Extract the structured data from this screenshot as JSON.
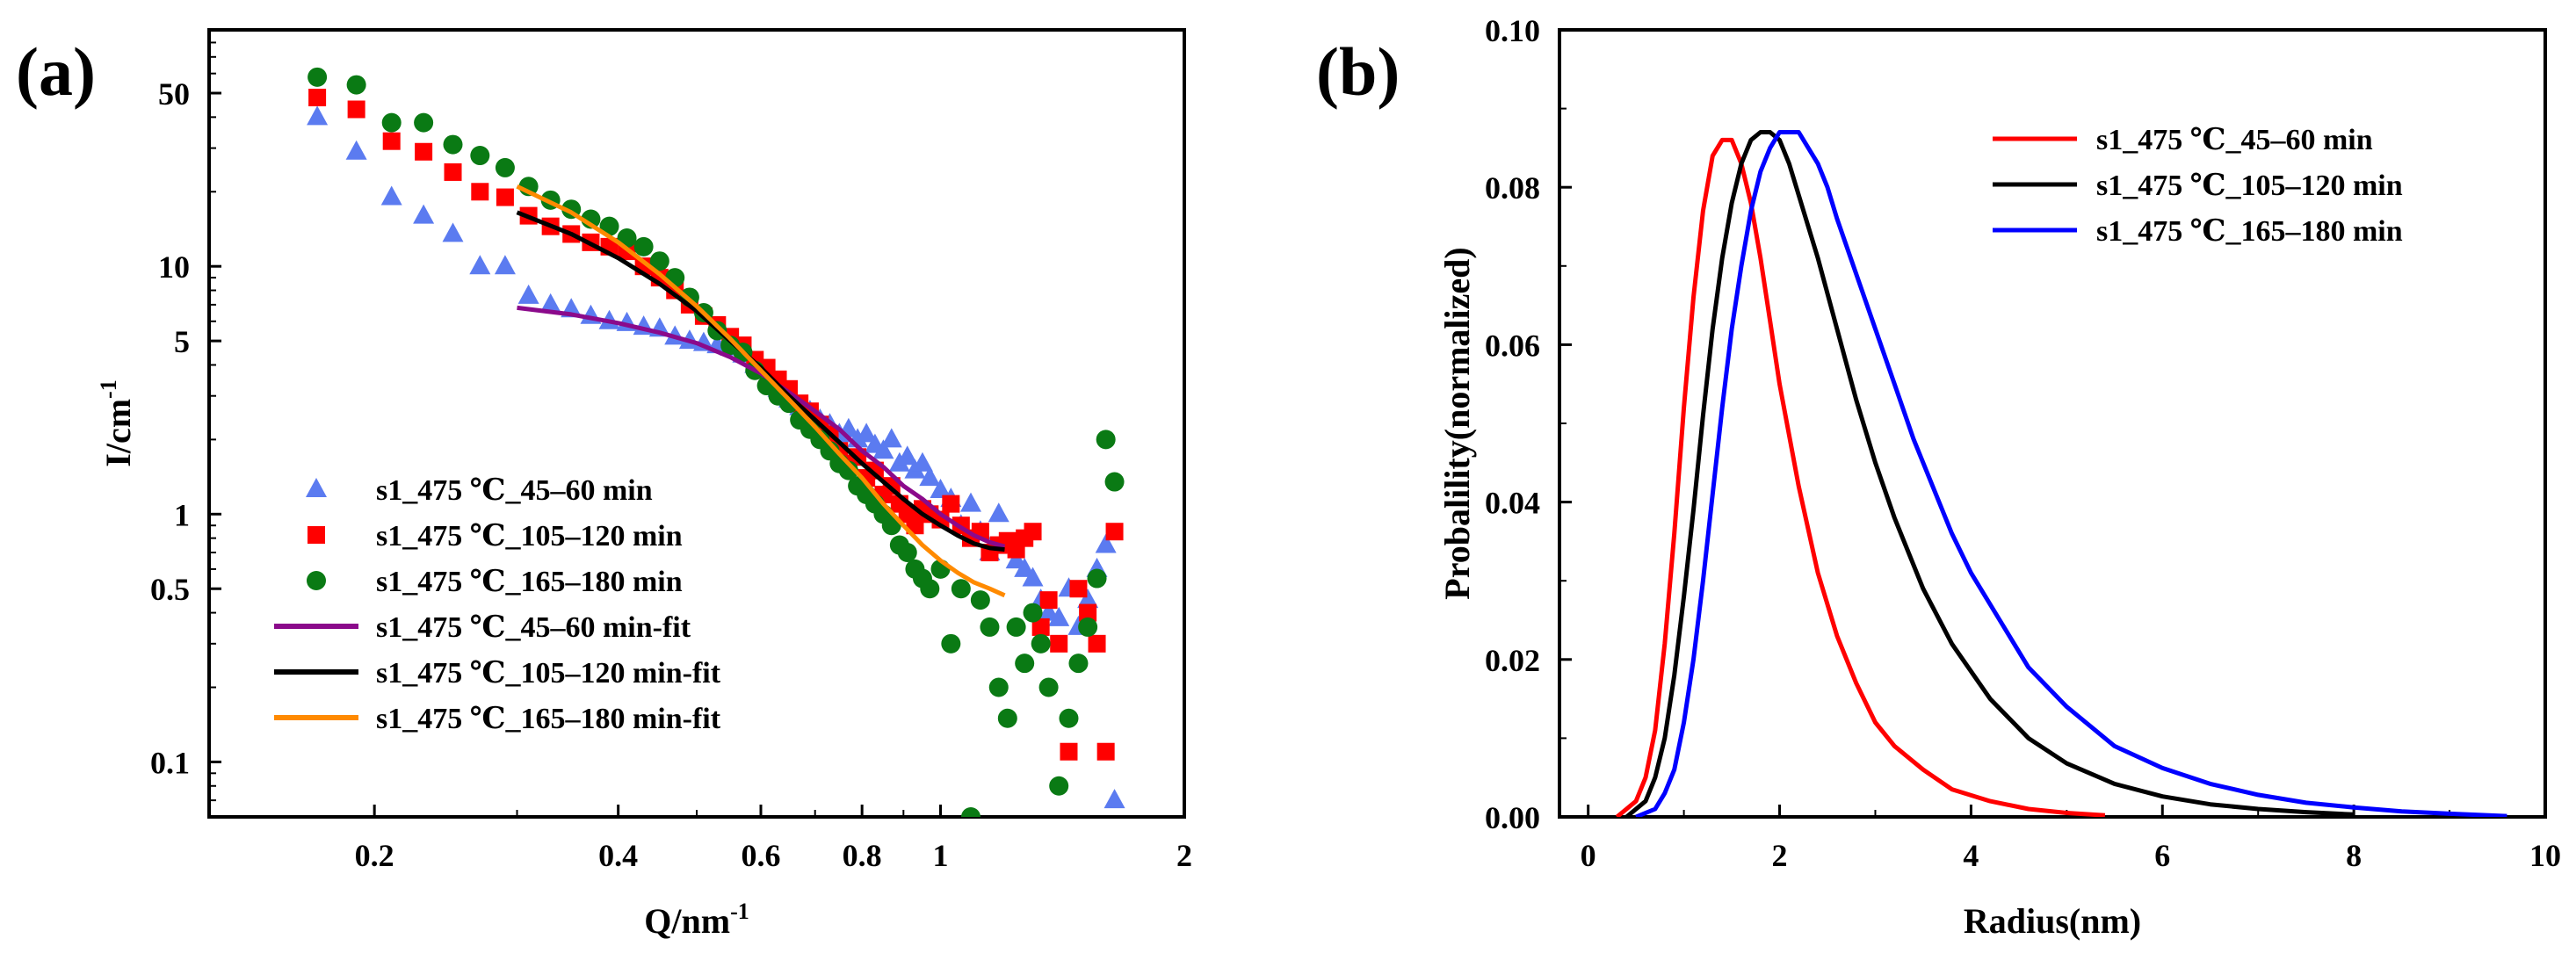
{
  "chart_data": [
    {
      "type": "scatter",
      "panel_label": "(a)",
      "xlabel": "Q/nm",
      "xlabel_sup": "-1",
      "ylabel": "I/cm",
      "ylabel_sup": "-1",
      "xscale": "log",
      "yscale": "log",
      "xlim": [
        0.125,
        2.0
      ],
      "ylim": [
        0.06,
        90
      ],
      "xticks": [
        {
          "v": 0.2,
          "label": "0.2"
        },
        {
          "v": 0.4,
          "label": "0.4"
        },
        {
          "v": 0.6,
          "label": "0.6"
        },
        {
          "v": 0.8,
          "label": "0.8"
        },
        {
          "v": 1,
          "label": "1"
        },
        {
          "v": 2,
          "label": "2"
        }
      ],
      "yticks": [
        {
          "v": 0.1,
          "label": "0.1"
        },
        {
          "v": 0.5,
          "label": "0.5"
        },
        {
          "v": 1,
          "label": "1"
        },
        {
          "v": 5,
          "label": "5"
        },
        {
          "v": 10,
          "label": "10"
        },
        {
          "v": 50,
          "label": "50"
        }
      ],
      "grid": false,
      "legend_position": "bottom-left",
      "series": [
        {
          "name": "s1_475 ℃_45–60 min",
          "kind": "marker",
          "marker": "triangle",
          "color": "#5B7BF0",
          "x": [
            0.17,
            0.19,
            0.21,
            0.23,
            0.25,
            0.27,
            0.29,
            0.31,
            0.33,
            0.35,
            0.37,
            0.39,
            0.41,
            0.43,
            0.45,
            0.47,
            0.49,
            0.51,
            0.53,
            0.55,
            0.57,
            0.59,
            0.61,
            0.63,
            0.65,
            0.67,
            0.69,
            0.71,
            0.73,
            0.75,
            0.77,
            0.79,
            0.81,
            0.83,
            0.85,
            0.87,
            0.89,
            0.91,
            0.93,
            0.95,
            0.97,
            1.0,
            1.03,
            1.06,
            1.09,
            1.12,
            1.15,
            1.18,
            1.21,
            1.24,
            1.27,
            1.3,
            1.33,
            1.36,
            1.4,
            1.44,
            1.48,
            1.52,
            1.56,
            1.6,
            1.64
          ],
          "y": [
            40,
            29,
            19,
            16,
            13.5,
            10,
            10,
            7.6,
            7.0,
            6.7,
            6.3,
            6.0,
            5.9,
            5.7,
            5.6,
            5.2,
            5.0,
            4.9,
            4.8,
            4.7,
            4.4,
            4.0,
            3.8,
            3.2,
            2.9,
            2.7,
            2.6,
            2.4,
            2.3,
            2.1,
            2.2,
            2.0,
            2.1,
            1.9,
            1.8,
            2.0,
            1.6,
            1.7,
            1.5,
            1.6,
            1.4,
            1.25,
            1.15,
            0.9,
            1.1,
            0.85,
            0.7,
            1.0,
            0.75,
            0.65,
            0.6,
            0.55,
            0.45,
            0.4,
            0.38,
            0.5,
            0.35,
            0.45,
            0.6,
            0.75,
            0.07
          ]
        },
        {
          "name": "s1_475 ℃_105–120 min",
          "kind": "marker",
          "marker": "square",
          "color": "#FF0000",
          "x": [
            0.17,
            0.19,
            0.21,
            0.23,
            0.25,
            0.27,
            0.29,
            0.31,
            0.33,
            0.35,
            0.37,
            0.39,
            0.41,
            0.43,
            0.45,
            0.47,
            0.49,
            0.51,
            0.53,
            0.55,
            0.57,
            0.59,
            0.61,
            0.63,
            0.65,
            0.67,
            0.69,
            0.71,
            0.73,
            0.75,
            0.77,
            0.79,
            0.81,
            0.83,
            0.85,
            0.87,
            0.89,
            0.91,
            0.93,
            0.95,
            0.97,
            1.0,
            1.03,
            1.06,
            1.09,
            1.12,
            1.15,
            1.18,
            1.21,
            1.24,
            1.27,
            1.3,
            1.33,
            1.36,
            1.4,
            1.44,
            1.48,
            1.52,
            1.56,
            1.6,
            1.64
          ],
          "y": [
            48,
            43,
            32,
            29,
            24,
            20,
            19,
            16,
            14.5,
            13.5,
            12.5,
            12.0,
            11.5,
            10.0,
            9.0,
            8.0,
            7.0,
            6.3,
            5.8,
            5.2,
            4.8,
            4.2,
            3.9,
            3.5,
            3.2,
            2.8,
            2.6,
            2.3,
            2.1,
            1.8,
            1.6,
            1.7,
            1.4,
            1.5,
            1.2,
            1.3,
            1.1,
            1.0,
            0.9,
            1.05,
            1.0,
            0.95,
            1.1,
            0.9,
            0.8,
            0.85,
            0.7,
            0.75,
            0.78,
            0.72,
            0.8,
            0.85,
            0.35,
            0.45,
            0.3,
            0.11,
            0.5,
            0.4,
            0.3,
            0.11,
            0.85
          ]
        },
        {
          "name": "s1_475 ℃_165–180 min",
          "kind": "marker",
          "marker": "circle",
          "color": "#0A7A14",
          "x": [
            0.17,
            0.19,
            0.21,
            0.23,
            0.25,
            0.27,
            0.29,
            0.31,
            0.33,
            0.35,
            0.37,
            0.39,
            0.41,
            0.43,
            0.45,
            0.47,
            0.49,
            0.51,
            0.53,
            0.55,
            0.57,
            0.59,
            0.61,
            0.63,
            0.65,
            0.67,
            0.69,
            0.71,
            0.73,
            0.75,
            0.77,
            0.79,
            0.81,
            0.83,
            0.85,
            0.87,
            0.89,
            0.91,
            0.93,
            0.95,
            0.97,
            1.0,
            1.03,
            1.06,
            1.09,
            1.12,
            1.15,
            1.18,
            1.21,
            1.24,
            1.27,
            1.3,
            1.33,
            1.36,
            1.4,
            1.44,
            1.48,
            1.52,
            1.56,
            1.6,
            1.64
          ],
          "y": [
            58,
            54,
            38,
            38,
            31,
            28,
            25,
            21,
            18.5,
            17,
            15.5,
            14.5,
            13,
            12,
            10.5,
            9,
            7.5,
            6.5,
            5.5,
            4.8,
            4.5,
            3.8,
            3.3,
            3.0,
            2.8,
            2.4,
            2.2,
            2.0,
            1.8,
            1.6,
            1.5,
            1.3,
            1.2,
            1.1,
            1.0,
            0.9,
            0.75,
            0.7,
            0.6,
            0.55,
            0.5,
            0.6,
            0.3,
            0.5,
            0.06,
            0.45,
            0.35,
            0.2,
            0.15,
            0.35,
            0.25,
            0.4,
            0.3,
            0.2,
            0.08,
            0.15,
            0.25,
            0.35,
            0.55,
            2.0,
            1.35
          ]
        },
        {
          "name": "s1_475 ℃_45–60 min-fit",
          "kind": "line",
          "color": "#8B0A8B",
          "x": [
            0.3,
            0.35,
            0.4,
            0.45,
            0.5,
            0.55,
            0.6,
            0.65,
            0.7,
            0.75,
            0.8,
            0.85,
            0.9,
            0.95,
            1.0,
            1.05,
            1.1,
            1.15,
            1.2
          ],
          "y": [
            6.8,
            6.4,
            5.9,
            5.4,
            4.9,
            4.3,
            3.7,
            3.1,
            2.6,
            2.2,
            1.8,
            1.55,
            1.3,
            1.15,
            1.0,
            0.9,
            0.82,
            0.77,
            0.74
          ]
        },
        {
          "name": "s1_475 ℃_105–120 min-fit",
          "kind": "line",
          "color": "#000000",
          "x": [
            0.3,
            0.35,
            0.4,
            0.45,
            0.5,
            0.55,
            0.6,
            0.65,
            0.7,
            0.75,
            0.8,
            0.85,
            0.9,
            0.95,
            1.0,
            1.05,
            1.1,
            1.15,
            1.2
          ],
          "y": [
            16.5,
            13.5,
            10.8,
            8.5,
            6.6,
            5.0,
            3.9,
            3.0,
            2.4,
            1.95,
            1.6,
            1.35,
            1.15,
            1.0,
            0.9,
            0.82,
            0.76,
            0.73,
            0.72
          ]
        },
        {
          "name": "s1_475 ℃_165–180 min-fit",
          "kind": "line",
          "color": "#FF8A00",
          "x": [
            0.3,
            0.35,
            0.4,
            0.45,
            0.5,
            0.55,
            0.6,
            0.65,
            0.7,
            0.75,
            0.8,
            0.85,
            0.9,
            0.95,
            1.0,
            1.05,
            1.1,
            1.15,
            1.2
          ],
          "y": [
            21,
            16.5,
            12.5,
            9.3,
            6.9,
            5.1,
            3.8,
            2.9,
            2.25,
            1.75,
            1.4,
            1.1,
            0.9,
            0.75,
            0.65,
            0.58,
            0.53,
            0.5,
            0.47
          ]
        }
      ]
    },
    {
      "type": "line",
      "panel_label": "(b)",
      "xlabel": "Radius(nm)",
      "ylabel": "Probalility(normalized)",
      "xlim": [
        -0.3,
        10
      ],
      "ylim": [
        0,
        0.1
      ],
      "xticks": [
        {
          "v": 0,
          "label": "0"
        },
        {
          "v": 2,
          "label": "2"
        },
        {
          "v": 4,
          "label": "4"
        },
        {
          "v": 6,
          "label": "6"
        },
        {
          "v": 8,
          "label": "8"
        },
        {
          "v": 10,
          "label": "10"
        }
      ],
      "yticks": [
        {
          "v": 0,
          "label": "0.00"
        },
        {
          "v": 0.02,
          "label": "0.02"
        },
        {
          "v": 0.04,
          "label": "0.04"
        },
        {
          "v": 0.06,
          "label": "0.06"
        },
        {
          "v": 0.08,
          "label": "0.08"
        },
        {
          "v": 0.1,
          "label": "0.10"
        }
      ],
      "grid": false,
      "legend_position": "top-right",
      "series": [
        {
          "name": "s1_475 ℃_45–60 min",
          "color": "#FF0000",
          "x": [
            0.3,
            0.5,
            0.6,
            0.7,
            0.8,
            0.9,
            1.0,
            1.1,
            1.2,
            1.3,
            1.4,
            1.5,
            1.6,
            1.7,
            1.8,
            1.9,
            2.0,
            2.2,
            2.4,
            2.6,
            2.8,
            3.0,
            3.2,
            3.5,
            3.8,
            4.2,
            4.6,
            5.0,
            5.4
          ],
          "y": [
            0,
            0.002,
            0.005,
            0.011,
            0.022,
            0.036,
            0.052,
            0.066,
            0.077,
            0.084,
            0.086,
            0.086,
            0.083,
            0.078,
            0.071,
            0.063,
            0.055,
            0.042,
            0.031,
            0.023,
            0.017,
            0.012,
            0.009,
            0.006,
            0.0035,
            0.002,
            0.001,
            0.0005,
            0.0002
          ]
        },
        {
          "name": "s1_475 ℃_105–120 min",
          "color": "#000000",
          "x": [
            0.4,
            0.6,
            0.7,
            0.8,
            0.9,
            1.0,
            1.1,
            1.2,
            1.3,
            1.4,
            1.5,
            1.6,
            1.7,
            1.8,
            1.9,
            2.0,
            2.1,
            2.2,
            2.4,
            2.6,
            2.8,
            3.0,
            3.2,
            3.5,
            3.8,
            4.2,
            4.6,
            5.0,
            5.5,
            6.0,
            6.5,
            7.0,
            7.5,
            8.0
          ],
          "y": [
            0,
            0.002,
            0.005,
            0.01,
            0.018,
            0.028,
            0.039,
            0.051,
            0.062,
            0.071,
            0.078,
            0.083,
            0.086,
            0.087,
            0.087,
            0.086,
            0.083,
            0.079,
            0.071,
            0.062,
            0.053,
            0.045,
            0.038,
            0.029,
            0.022,
            0.015,
            0.01,
            0.0068,
            0.0042,
            0.0026,
            0.0016,
            0.001,
            0.0006,
            0.0003
          ]
        },
        {
          "name": "s1_475 ℃_165–180 min",
          "color": "#0000FF",
          "x": [
            0.5,
            0.7,
            0.8,
            0.9,
            1.0,
            1.1,
            1.2,
            1.3,
            1.4,
            1.5,
            1.6,
            1.7,
            1.8,
            1.9,
            2.0,
            2.1,
            2.2,
            2.3,
            2.4,
            2.5,
            2.6,
            2.8,
            3.0,
            3.2,
            3.4,
            3.6,
            3.8,
            4.0,
            4.3,
            4.6,
            5.0,
            5.5,
            6.0,
            6.5,
            7.0,
            7.5,
            8.0,
            8.5,
            9.0,
            9.6
          ],
          "y": [
            0,
            0.001,
            0.003,
            0.006,
            0.012,
            0.02,
            0.03,
            0.041,
            0.052,
            0.062,
            0.07,
            0.077,
            0.082,
            0.085,
            0.087,
            0.087,
            0.087,
            0.085,
            0.083,
            0.08,
            0.076,
            0.069,
            0.062,
            0.055,
            0.048,
            0.042,
            0.036,
            0.031,
            0.025,
            0.019,
            0.014,
            0.009,
            0.0062,
            0.0042,
            0.0028,
            0.0018,
            0.0012,
            0.0007,
            0.0004,
            0.0001
          ]
        }
      ]
    }
  ]
}
